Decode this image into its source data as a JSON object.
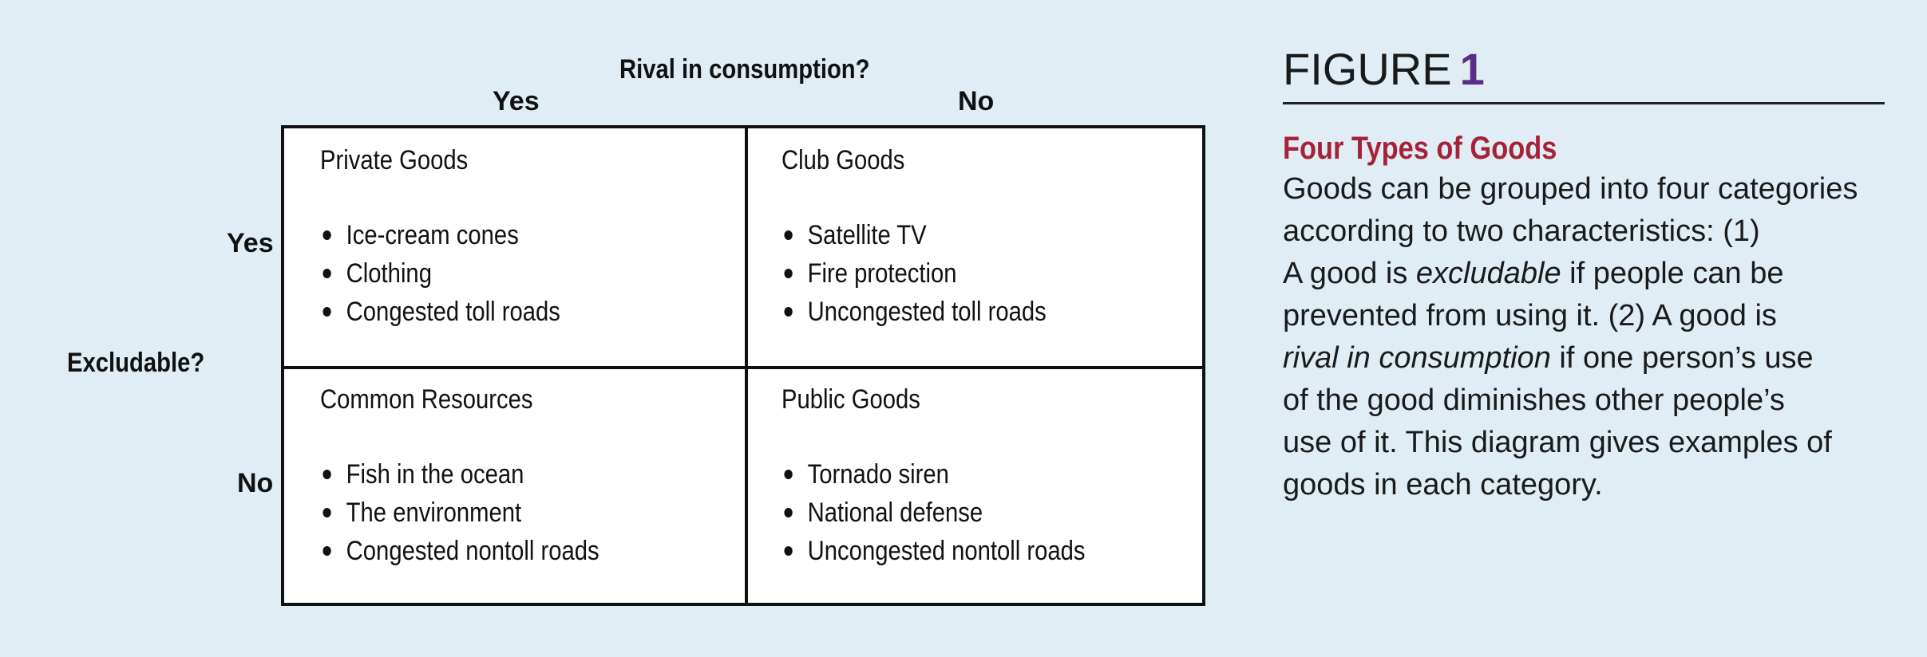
{
  "axes": {
    "column_title": "Rival in consumption?",
    "column_yes": "Yes",
    "column_no": "No",
    "row_title": "Excludable?",
    "row_yes": "Yes",
    "row_no": "No"
  },
  "cells": {
    "top_left": {
      "title": "Private Goods",
      "items": [
        "Ice-cream cones",
        "Clothing",
        "Congested toll roads"
      ]
    },
    "top_right": {
      "title": "Club Goods",
      "items": [
        "Satellite TV",
        "Fire protection",
        "Uncongested toll roads"
      ]
    },
    "bottom_left": {
      "title": "Common Resources",
      "items": [
        "Fish in the ocean",
        "The environment",
        "Congested nontoll roads"
      ]
    },
    "bottom_right": {
      "title": "Public Goods",
      "items": [
        "Tornado siren",
        "National defense",
        "Uncongested nontoll roads"
      ]
    }
  },
  "figure": {
    "label": "FIGURE",
    "number": "1",
    "heading": "Four Types of Goods",
    "caption": {
      "line1": "Goods can be grouped into four categories",
      "line2": "according to two characteristics: (1)",
      "line3_a": "A good is ",
      "line3_em": "excludable",
      "line3_b": " if people can be",
      "line4": "prevented from using it. (2) A good is",
      "line5_em": "rival in consumption",
      "line5_b": " if one person’s use",
      "line6": "of the good diminishes other people’s",
      "line7": "use of it. This diagram gives examples of",
      "line8": "goods in each category."
    }
  },
  "colors": {
    "background": "#e0edf4",
    "figure_number": "#5c2d85",
    "heading": "#a8213a"
  }
}
